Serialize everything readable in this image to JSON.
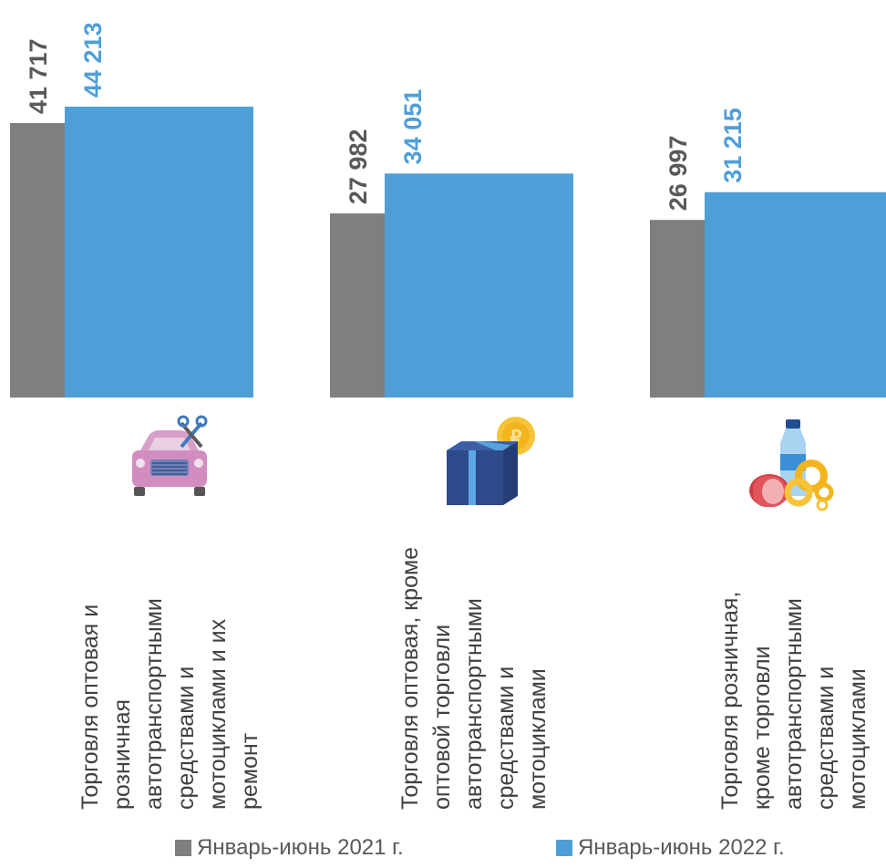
{
  "chart_data": {
    "type": "bar",
    "categories": [
      [
        "Торговля оптовая и",
        "розничная",
        "автотранспортными",
        "средствами и",
        "мотоциклами и их",
        "ремонт"
      ],
      [
        "Торговля оптовая, кроме",
        "оптовой торговли",
        "автотранспортными",
        "средствами и",
        "мотоциклами"
      ],
      [
        "Торговля розничная,",
        "кроме торговли",
        "автотранспортными",
        "средствами и",
        "мотоциклами"
      ]
    ],
    "series": [
      {
        "name": "Январь-июнь 2021 г.",
        "values": [
          41717,
          27982,
          26997
        ],
        "labels": [
          "41 717",
          "27 982",
          "26 997"
        ],
        "color": "#7f7f7f"
      },
      {
        "name": "Январь-июнь 2022 г.",
        "values": [
          44213,
          34051,
          31215
        ],
        "labels": [
          "44 213",
          "34 051",
          "31 215"
        ],
        "color": "#4e9fd8"
      }
    ],
    "icons": [
      "car-repair-icon",
      "gift-box-coin-icon",
      "groceries-icon"
    ],
    "ylim": [
      0,
      44213
    ],
    "legend_position": "bottom",
    "grid": false
  }
}
